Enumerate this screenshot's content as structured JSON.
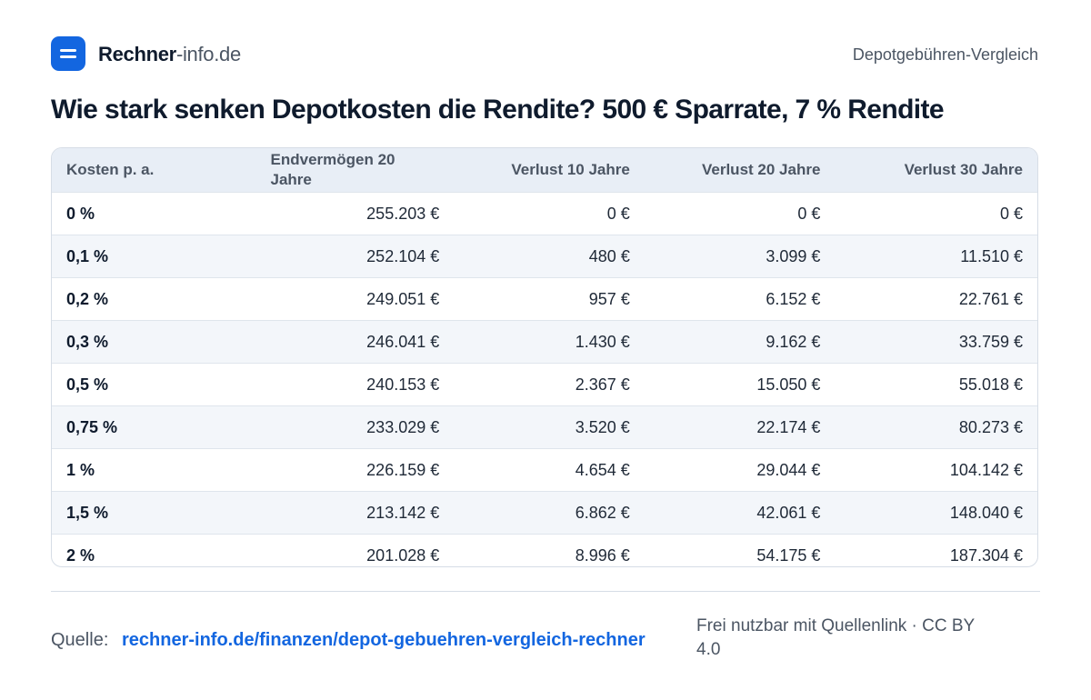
{
  "header": {
    "brand_strong": "Rechner",
    "brand_light": "-info.de",
    "section": "Depotgebühren-Vergleich"
  },
  "title": "Wie stark senken Depotkosten die Rendite? 500 € Sparrate, 7 % Rendite",
  "table": {
    "columns": [
      "Kosten p. a.",
      "Endvermögen 20 Jahre",
      "Verlust 10 Jahre",
      "Verlust 20 Jahre",
      "Verlust 30 Jahre"
    ],
    "rows": [
      [
        "0 %",
        "255.203 €",
        "0 €",
        "0 €",
        "0 €"
      ],
      [
        "0,1 %",
        "252.104 €",
        "480 €",
        "3.099 €",
        "11.510 €"
      ],
      [
        "0,2 %",
        "249.051 €",
        "957 €",
        "6.152 €",
        "22.761 €"
      ],
      [
        "0,3 %",
        "246.041 €",
        "1.430 €",
        "9.162 €",
        "33.759 €"
      ],
      [
        "0,5 %",
        "240.153 €",
        "2.367 €",
        "15.050 €",
        "55.018 €"
      ],
      [
        "0,75 %",
        "233.029 €",
        "3.520 €",
        "22.174 €",
        "80.273 €"
      ],
      [
        "1 %",
        "226.159 €",
        "4.654 €",
        "29.044 €",
        "104.142 €"
      ],
      [
        "1,5 %",
        "213.142 €",
        "6.862 €",
        "42.061 €",
        "148.040 €"
      ],
      [
        "2 %",
        "201.028 €",
        "8.996 €",
        "54.175 €",
        "187.304 €"
      ]
    ]
  },
  "footer": {
    "source_label": "Quelle:",
    "source_link": "rechner-info.de/finanzen/depot-gebuehren-vergleich-rechner",
    "license": "Frei nutzbar mit Quellenlink · CC BY 4.0"
  },
  "colors": {
    "accent": "#1366e0",
    "header_bg": "#e8eef6",
    "alt_row_bg": "#f3f6fa",
    "border": "#d6dde6"
  }
}
